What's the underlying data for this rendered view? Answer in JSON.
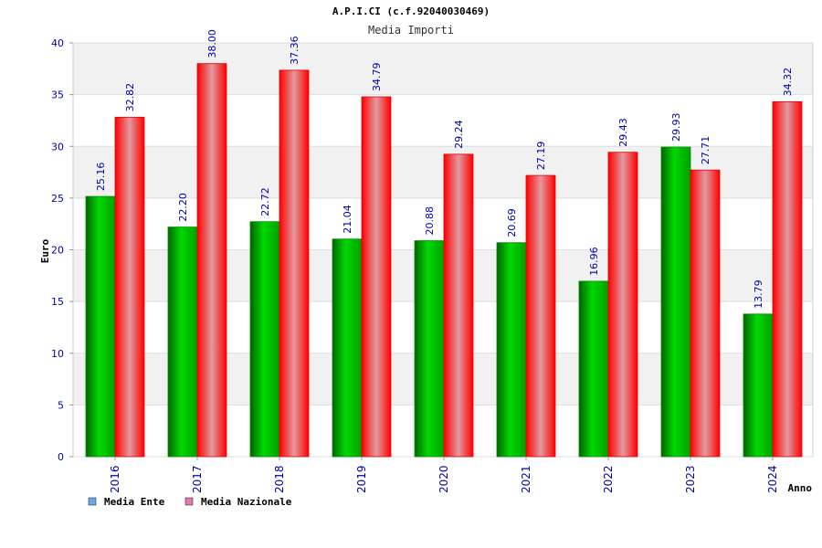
{
  "chart_data": {
    "type": "bar",
    "title": "A.P.I.CI (c.f.92040030469)",
    "subtitle": "Media Importi",
    "xlabel": "Anno",
    "ylabel": "Euro",
    "ylim": [
      0,
      40
    ],
    "yticks": [
      "0",
      "5",
      "10",
      "15",
      "20",
      "25",
      "30",
      "35",
      "40"
    ],
    "grid": true,
    "legend_position": "bottom-left",
    "categories": [
      "2016",
      "2017",
      "2018",
      "2019",
      "2020",
      "2021",
      "2022",
      "2023",
      "2024"
    ],
    "series": [
      {
        "name": "Media Ente",
        "values": [
          25.16,
          22.2,
          22.72,
          21.04,
          20.88,
          20.69,
          16.96,
          29.93,
          13.79
        ],
        "labels": [
          "25.16",
          "22.20",
          "22.72",
          "21.04",
          "20.88",
          "20.69",
          "16.96",
          "29.93",
          "13.79"
        ],
        "color": "#00c000",
        "legend_color": "#6aa9e8"
      },
      {
        "name": "Media Nazionale",
        "values": [
          32.82,
          38.0,
          37.36,
          34.79,
          29.24,
          27.19,
          29.43,
          27.71,
          34.32
        ],
        "labels": [
          "32.82",
          "38.00",
          "37.36",
          "34.79",
          "29.24",
          "27.19",
          "29.43",
          "27.71",
          "34.32"
        ],
        "color": "#ff0000",
        "legend_color": "#e07bb0"
      }
    ]
  }
}
